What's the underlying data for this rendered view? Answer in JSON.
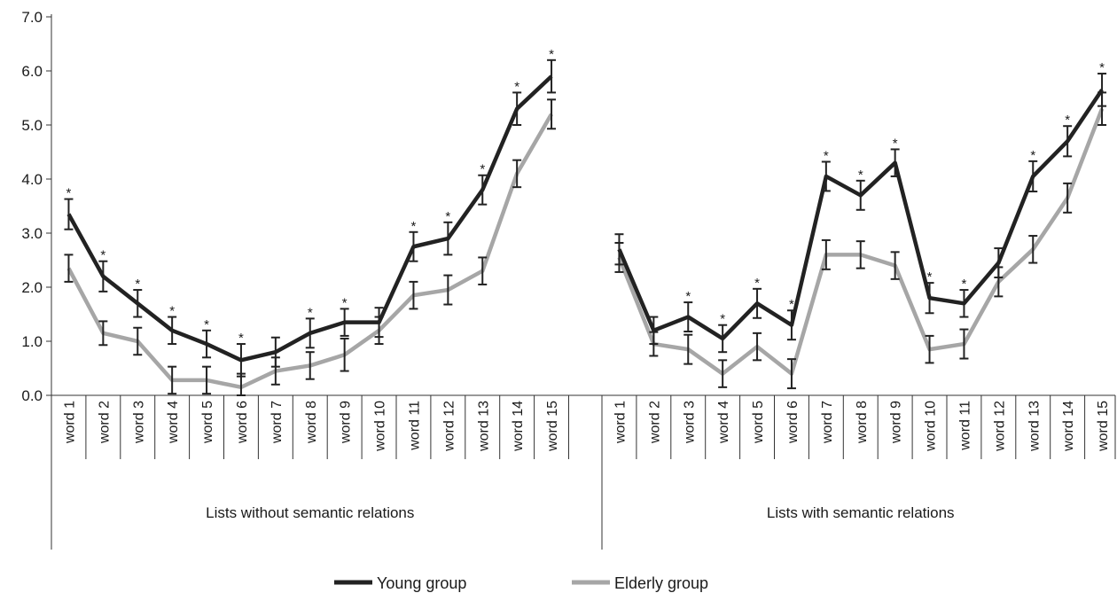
{
  "chart_data": {
    "type": "line",
    "title": "",
    "xlabel": "",
    "ylabel": "",
    "ylim": [
      0,
      7
    ],
    "yticks": [
      "0.0",
      "1.0",
      "2.0",
      "3.0",
      "4.0",
      "5.0",
      "6.0",
      "7.0"
    ],
    "grid": false,
    "legend": {
      "position": "bottom-center",
      "entries": [
        {
          "label": "Young group",
          "color": "#222222"
        },
        {
          "label": "Elderly group",
          "color": "#a6a6a6"
        }
      ]
    },
    "groups": [
      {
        "label": "Lists without semantic  relations",
        "categories": [
          "word 1",
          "word 2",
          "word 3",
          "word 4",
          "word 5",
          "word 6",
          "word 7",
          "word 8",
          "word 9",
          "word 10",
          "word 11",
          "word 12",
          "word 13",
          "word 14",
          "word 15"
        ],
        "significance_marker": "*",
        "significant": [
          true,
          true,
          true,
          true,
          true,
          true,
          false,
          true,
          true,
          false,
          true,
          true,
          true,
          true,
          true
        ],
        "series": [
          {
            "name": "Young group",
            "color": "#222222",
            "values": [
              3.35,
              2.2,
              1.7,
              1.2,
              0.95,
              0.65,
              0.8,
              1.15,
              1.35,
              1.35,
              2.75,
              2.9,
              3.8,
              5.3,
              5.9
            ],
            "error": [
              0.28,
              0.28,
              0.25,
              0.25,
              0.25,
              0.3,
              0.27,
              0.27,
              0.25,
              0.27,
              0.27,
              0.3,
              0.27,
              0.3,
              0.3
            ]
          },
          {
            "name": "Elderly group",
            "color": "#a6a6a6",
            "values": [
              2.35,
              1.15,
              1.0,
              0.28,
              0.28,
              0.15,
              0.45,
              0.55,
              0.75,
              1.2,
              1.85,
              1.95,
              2.3,
              4.1,
              5.2
            ],
            "error": [
              0.25,
              0.22,
              0.25,
              0.25,
              0.25,
              0.25,
              0.25,
              0.25,
              0.3,
              0.25,
              0.25,
              0.27,
              0.25,
              0.25,
              0.27
            ]
          }
        ]
      },
      {
        "label": "Lists with semantic  relations",
        "categories": [
          "word 1",
          "word 2",
          "word 3",
          "word 4",
          "word 5",
          "word 6",
          "word 7",
          "word 8",
          "word 9",
          "word 10",
          "word 11",
          "word 12",
          "word 13",
          "word 14",
          "word 15"
        ],
        "significance_marker": "*",
        "significant": [
          false,
          false,
          true,
          true,
          true,
          true,
          true,
          true,
          true,
          true,
          true,
          false,
          true,
          true,
          true
        ],
        "series": [
          {
            "name": "Young group",
            "color": "#222222",
            "values": [
              2.7,
              1.2,
              1.45,
              1.05,
              1.7,
              1.3,
              4.05,
              3.7,
              4.3,
              1.8,
              1.7,
              2.45,
              4.05,
              4.7,
              5.65
            ],
            "error": [
              0.28,
              0.25,
              0.27,
              0.25,
              0.27,
              0.27,
              0.27,
              0.27,
              0.25,
              0.28,
              0.25,
              0.27,
              0.28,
              0.28,
              0.3
            ]
          },
          {
            "name": "Elderly group",
            "color": "#a6a6a6",
            "values": [
              2.55,
              0.95,
              0.85,
              0.4,
              0.9,
              0.4,
              2.6,
              2.6,
              2.4,
              0.85,
              0.95,
              2.1,
              2.7,
              3.65,
              5.3
            ],
            "error": [
              0.27,
              0.22,
              0.27,
              0.25,
              0.25,
              0.27,
              0.27,
              0.25,
              0.25,
              0.25,
              0.27,
              0.27,
              0.25,
              0.27,
              0.3
            ]
          }
        ]
      }
    ]
  }
}
